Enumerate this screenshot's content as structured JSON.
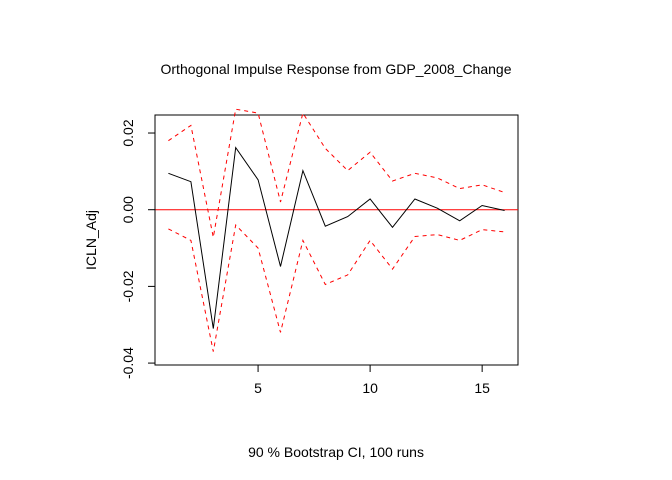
{
  "chart_data": {
    "type": "line",
    "title": "Orthogonal Impulse Response from GDP_2008_Change",
    "xlabel": "90 % Bootstrap CI,  100 runs",
    "ylabel": "ICLN_Adj",
    "xlim": [
      0.4,
      16.6
    ],
    "ylim": [
      -0.0405,
      0.0247
    ],
    "xticks": [
      5,
      10,
      15
    ],
    "yticks": [
      -0.04,
      -0.02,
      0.0,
      0.02
    ],
    "ytick_labels": [
      "-0.04",
      "-0.02",
      "0.00",
      "0.02"
    ],
    "x": [
      1,
      2,
      3,
      4,
      5,
      6,
      7,
      8,
      9,
      10,
      11,
      12,
      13,
      14,
      15,
      16
    ],
    "series": [
      {
        "role": "response",
        "color": "#000000",
        "style": "solid",
        "values": [
          0.0095,
          0.0073,
          -0.031,
          0.0162,
          0.0078,
          -0.0148,
          0.0102,
          -0.0043,
          -0.0018,
          0.0028,
          -0.0046,
          0.0028,
          0.0004,
          -0.0029,
          0.0011,
          -0.0002
        ]
      },
      {
        "role": "upper",
        "color": "#ff0000",
        "style": "dashed",
        "values": [
          0.018,
          0.022,
          -0.0072,
          0.0262,
          0.0252,
          0.002,
          0.0252,
          0.016,
          0.0102,
          0.015,
          0.0075,
          0.0095,
          0.0083,
          0.0055,
          0.0065,
          0.0045
        ]
      },
      {
        "role": "lower",
        "color": "#ff0000",
        "style": "dashed",
        "values": [
          -0.005,
          -0.008,
          -0.037,
          -0.004,
          -0.01,
          -0.032,
          -0.008,
          -0.0195,
          -0.017,
          -0.008,
          -0.0155,
          -0.007,
          -0.0065,
          -0.008,
          -0.0052,
          -0.0058
        ]
      }
    ],
    "zero_line": {
      "y": 0,
      "color": "#ff0000"
    },
    "grid": false,
    "legend": "none"
  }
}
